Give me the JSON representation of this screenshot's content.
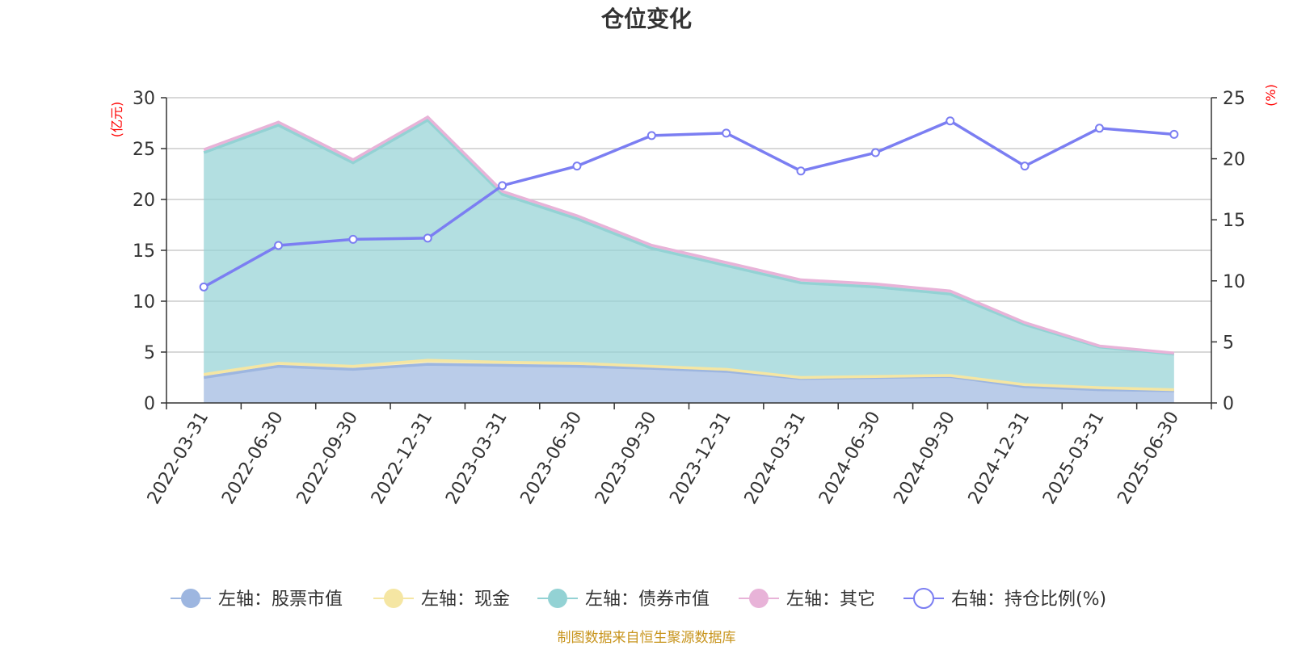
{
  "chart_data": {
    "type": "area",
    "title": "仓位变化",
    "left_unit": "(亿元)",
    "right_unit": "(%)",
    "x": [
      "2022-03-31",
      "2022-06-30",
      "2022-09-30",
      "2022-12-31",
      "2023-03-31",
      "2023-06-30",
      "2023-09-30",
      "2023-12-31",
      "2024-03-31",
      "2024-06-30",
      "2024-09-30",
      "2024-12-31",
      "2025-03-31",
      "2025-06-30"
    ],
    "left_ylim": [
      0,
      30
    ],
    "left_ticks": [
      0,
      5,
      10,
      15,
      20,
      25,
      30
    ],
    "right_ylim": [
      0,
      25
    ],
    "right_ticks": [
      0,
      5,
      10,
      15,
      20,
      25
    ],
    "grid": true,
    "legend_position": "bottom",
    "stacked": true,
    "series": [
      {
        "name": "左轴：股票市值",
        "axis": "left",
        "color": "#9db6e0",
        "values": [
          2.5,
          3.6,
          3.3,
          3.8,
          3.7,
          3.6,
          3.4,
          3.1,
          2.4,
          2.5,
          2.6,
          1.6,
          1.3,
          1.2
        ]
      },
      {
        "name": "左轴：现金",
        "axis": "left",
        "color": "#f5e6a3",
        "values": [
          0.3,
          0.3,
          0.3,
          0.4,
          0.3,
          0.3,
          0.2,
          0.2,
          0.1,
          0.1,
          0.1,
          0.2,
          0.2,
          0.1
        ]
      },
      {
        "name": "左轴：债券市值",
        "axis": "left",
        "color": "#93d2d4",
        "values": [
          21.8,
          23.4,
          20.0,
          23.6,
          16.5,
          14.2,
          11.6,
          10.2,
          9.3,
          8.8,
          8.0,
          5.9,
          4.0,
          3.5
        ]
      },
      {
        "name": "左轴：其它",
        "axis": "left",
        "color": "#e8b3d8",
        "values": [
          0.3,
          0.3,
          0.3,
          0.3,
          0.3,
          0.3,
          0.3,
          0.3,
          0.3,
          0.3,
          0.3,
          0.2,
          0.1,
          0.1
        ]
      },
      {
        "name": "右轴：持仓比例(%)",
        "axis": "right",
        "color": "#7b7ef2",
        "values": [
          9.5,
          12.9,
          13.4,
          13.5,
          17.8,
          19.4,
          21.9,
          22.1,
          19.0,
          20.5,
          23.1,
          19.4,
          22.5,
          22.0
        ]
      }
    ]
  },
  "footer": {
    "source": "制图数据来自恒生聚源数据库"
  }
}
